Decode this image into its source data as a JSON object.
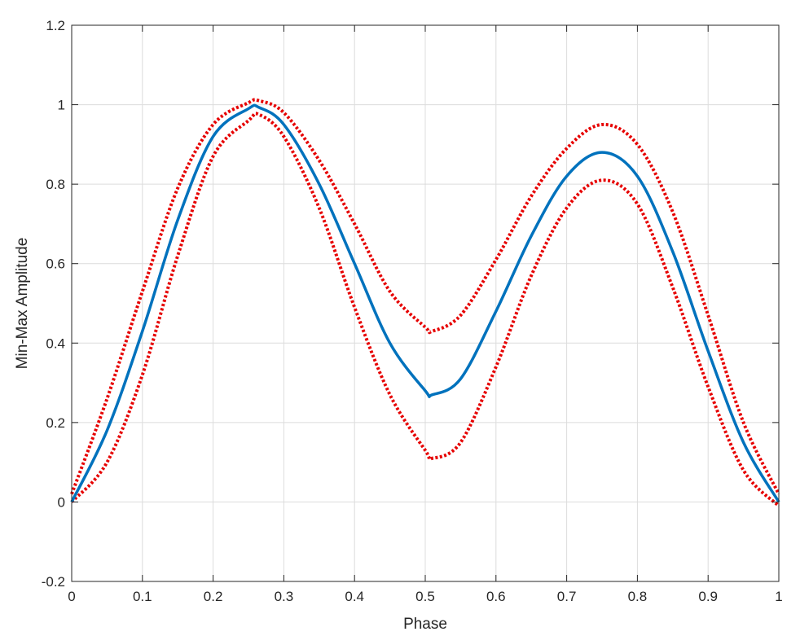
{
  "chart_data": {
    "type": "line",
    "title": "",
    "xlabel": "Phase",
    "ylabel": "Min-Max Amplitude",
    "xlim": [
      0,
      1
    ],
    "ylim": [
      -0.2,
      1.2
    ],
    "grid": true,
    "xticks": [
      "0",
      "0.1",
      "0.2",
      "0.3",
      "0.4",
      "0.5",
      "0.6",
      "0.7",
      "0.8",
      "0.9",
      "1"
    ],
    "yticks": [
      "-0.2",
      "0",
      "0.2",
      "0.4",
      "0.6",
      "0.8",
      "1",
      "1.2"
    ],
    "x": [
      0,
      0.05,
      0.1,
      0.15,
      0.2,
      0.25,
      0.265,
      0.3,
      0.35,
      0.4,
      0.45,
      0.5,
      0.51,
      0.55,
      0.6,
      0.65,
      0.7,
      0.75,
      0.8,
      0.85,
      0.9,
      0.95,
      1
    ],
    "series": [
      {
        "role": "mean",
        "color": "#0072bd",
        "style": "solid",
        "values": [
          0.0,
          0.18,
          0.43,
          0.71,
          0.92,
          0.99,
          0.993,
          0.95,
          0.8,
          0.6,
          0.4,
          0.28,
          0.27,
          0.31,
          0.48,
          0.67,
          0.82,
          0.88,
          0.82,
          0.63,
          0.38,
          0.15,
          0.0
        ]
      },
      {
        "role": "upper-bound",
        "color": "#e60000",
        "style": "dotted",
        "values": [
          0.02,
          0.26,
          0.53,
          0.79,
          0.95,
          1.005,
          1.01,
          0.98,
          0.86,
          0.7,
          0.53,
          0.44,
          0.43,
          0.47,
          0.61,
          0.77,
          0.89,
          0.95,
          0.9,
          0.73,
          0.47,
          0.2,
          0.02
        ]
      },
      {
        "role": "lower-bound",
        "color": "#e60000",
        "style": "dotted",
        "values": [
          0.0,
          0.1,
          0.32,
          0.62,
          0.87,
          0.96,
          0.975,
          0.92,
          0.74,
          0.49,
          0.27,
          0.13,
          0.11,
          0.15,
          0.34,
          0.57,
          0.74,
          0.81,
          0.75,
          0.54,
          0.29,
          0.08,
          -0.01
        ]
      }
    ]
  }
}
